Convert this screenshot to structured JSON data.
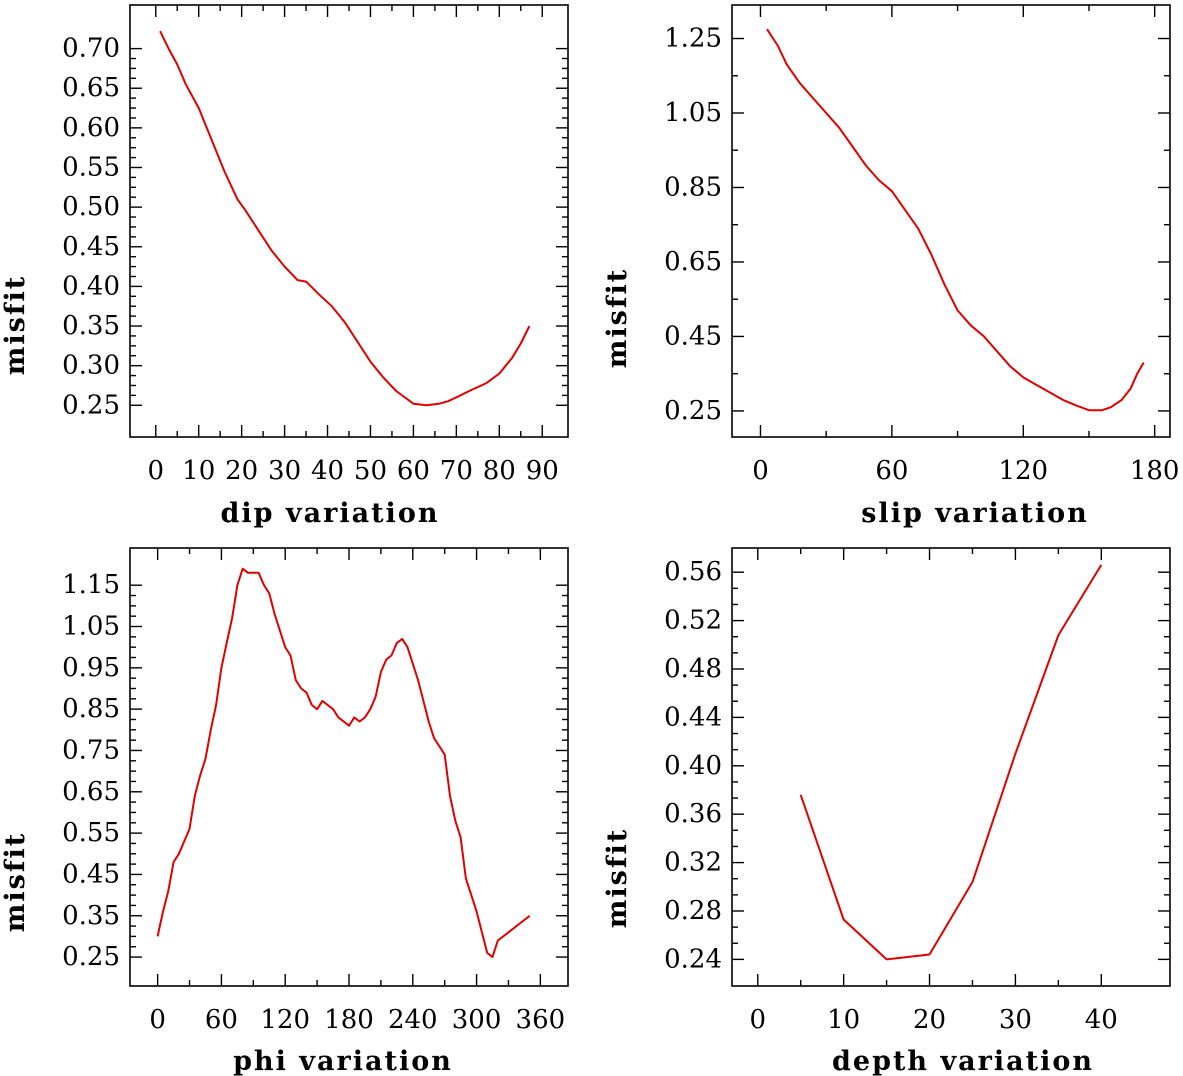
{
  "chart_data": [
    {
      "type": "line",
      "xlabel": "dip    variation",
      "ylabel": "misfit",
      "xticks": [
        0,
        10,
        20,
        30,
        40,
        50,
        60,
        70,
        80,
        90
      ],
      "yticks": [
        0.25,
        0.3,
        0.35,
        0.4,
        0.45,
        0.5,
        0.55,
        0.6,
        0.65,
        0.7
      ],
      "ytick_labels": [
        "0.25",
        "0.30",
        "0.35",
        "0.40",
        "0.45",
        "0.50",
        "0.55",
        "0.60",
        "0.65",
        "0.70"
      ],
      "xlim": [
        -6,
        96
      ],
      "ylim": [
        0.21,
        0.755
      ],
      "color": "#e00000",
      "x": [
        1,
        3,
        5,
        7,
        10,
        13,
        16,
        19,
        21,
        24,
        27,
        30,
        33,
        35,
        38,
        41,
        44,
        47,
        50,
        53,
        56,
        60,
        63,
        66,
        68,
        70,
        73,
        77,
        80,
        83,
        85,
        87
      ],
      "y": [
        0.722,
        0.7,
        0.68,
        0.655,
        0.625,
        0.585,
        0.545,
        0.51,
        0.495,
        0.47,
        0.445,
        0.425,
        0.408,
        0.406,
        0.39,
        0.375,
        0.355,
        0.33,
        0.305,
        0.285,
        0.268,
        0.252,
        0.25,
        0.252,
        0.255,
        0.26,
        0.268,
        0.278,
        0.29,
        0.31,
        0.328,
        0.35
      ]
    },
    {
      "type": "line",
      "xlabel": "slip   variation",
      "ylabel": "misfit",
      "xticks": [
        0,
        60,
        120,
        180
      ],
      "yticks": [
        0.25,
        0.45,
        0.65,
        0.85,
        1.05,
        1.25
      ],
      "ytick_labels": [
        "0.25",
        "0.45",
        "0.65",
        "0.85",
        "1.05",
        "1.25"
      ],
      "xlim": [
        -13,
        187
      ],
      "ylim": [
        0.18,
        1.34
      ],
      "color": "#e00000",
      "x": [
        3,
        8,
        12,
        18,
        24,
        30,
        36,
        42,
        48,
        54,
        60,
        66,
        72,
        78,
        84,
        90,
        96,
        102,
        108,
        114,
        120,
        126,
        132,
        138,
        144,
        150,
        156,
        160,
        165,
        169,
        172,
        175
      ],
      "y": [
        1.275,
        1.23,
        1.18,
        1.13,
        1.09,
        1.05,
        1.01,
        0.96,
        0.91,
        0.87,
        0.84,
        0.79,
        0.74,
        0.67,
        0.59,
        0.52,
        0.48,
        0.45,
        0.41,
        0.37,
        0.34,
        0.32,
        0.3,
        0.28,
        0.265,
        0.252,
        0.252,
        0.26,
        0.28,
        0.31,
        0.35,
        0.38
      ]
    },
    {
      "type": "line",
      "xlabel": "phi    variation",
      "ylabel": "misfit",
      "xticks": [
        0,
        60,
        120,
        180,
        240,
        300,
        360
      ],
      "yticks": [
        0.25,
        0.35,
        0.45,
        0.55,
        0.65,
        0.75,
        0.85,
        0.95,
        1.05,
        1.15
      ],
      "ytick_labels": [
        "0.25",
        "0.35",
        "0.45",
        "0.55",
        "0.65",
        "0.75",
        "0.85",
        "0.95",
        "1.05",
        "1.15"
      ],
      "xlim": [
        -26,
        386
      ],
      "ylim": [
        0.18,
        1.24
      ],
      "color": "#e00000",
      "x": [
        0,
        5,
        10,
        15,
        20,
        25,
        30,
        35,
        40,
        45,
        50,
        55,
        60,
        65,
        70,
        75,
        80,
        85,
        90,
        95,
        100,
        105,
        110,
        115,
        120,
        125,
        130,
        135,
        140,
        145,
        150,
        155,
        160,
        165,
        170,
        175,
        180,
        185,
        190,
        195,
        200,
        205,
        210,
        215,
        220,
        225,
        230,
        235,
        240,
        245,
        250,
        255,
        260,
        265,
        270,
        275,
        280,
        285,
        290,
        295,
        300,
        305,
        310,
        315,
        320,
        325,
        330,
        335,
        340,
        345,
        350
      ],
      "y": [
        0.3,
        0.36,
        0.41,
        0.48,
        0.5,
        0.53,
        0.56,
        0.64,
        0.69,
        0.73,
        0.8,
        0.86,
        0.95,
        1.01,
        1.07,
        1.15,
        1.19,
        1.18,
        1.18,
        1.18,
        1.15,
        1.13,
        1.08,
        1.04,
        1.0,
        0.98,
        0.92,
        0.9,
        0.89,
        0.86,
        0.85,
        0.87,
        0.86,
        0.85,
        0.83,
        0.82,
        0.81,
        0.83,
        0.82,
        0.83,
        0.85,
        0.88,
        0.94,
        0.97,
        0.98,
        1.01,
        1.02,
        1.0,
        0.96,
        0.92,
        0.87,
        0.82,
        0.78,
        0.76,
        0.74,
        0.64,
        0.58,
        0.54,
        0.44,
        0.4,
        0.36,
        0.31,
        0.26,
        0.25,
        0.29,
        0.3,
        0.31,
        0.32,
        0.33,
        0.34,
        0.35
      ],
      "note_trim": 61
    },
    {
      "type": "line",
      "xlabel": "depth  variation",
      "ylabel": "misfit",
      "xticks": [
        0,
        10,
        20,
        30,
        40
      ],
      "yticks": [
        0.24,
        0.28,
        0.32,
        0.36,
        0.4,
        0.44,
        0.48,
        0.52,
        0.56
      ],
      "ytick_labels": [
        "0.24",
        "0.28",
        "0.32",
        "0.36",
        "0.40",
        "0.44",
        "0.48",
        "0.52",
        "0.56"
      ],
      "xlim": [
        -3,
        48
      ],
      "ylim": [
        0.218,
        0.58
      ],
      "color": "#e00000",
      "x": [
        5,
        10,
        15,
        20,
        25,
        30,
        35,
        40
      ],
      "y": [
        0.376,
        0.273,
        0.24,
        0.244,
        0.304,
        0.41,
        0.508,
        0.566
      ]
    }
  ]
}
